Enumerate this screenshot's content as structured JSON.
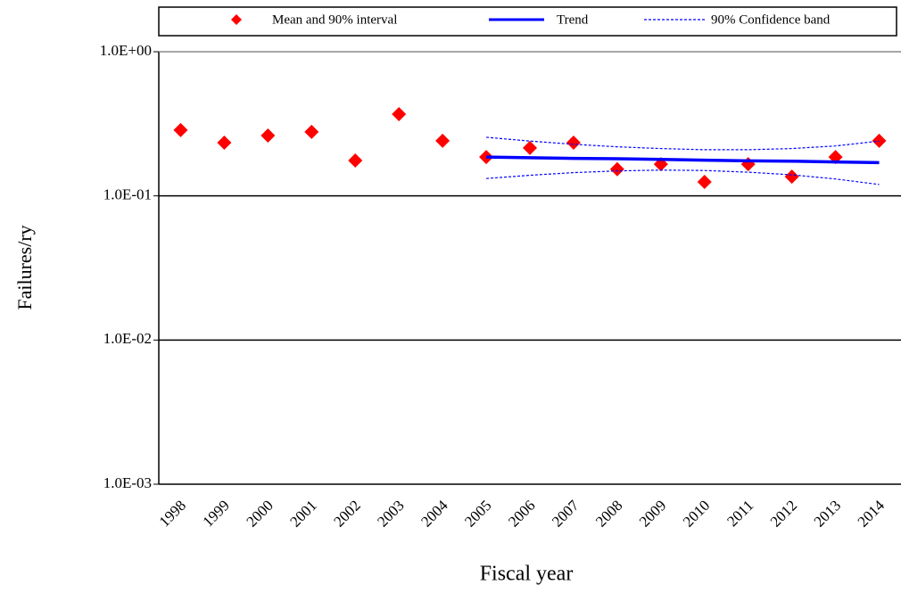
{
  "chart_data": {
    "type": "line",
    "x_label": "Fiscal year",
    "y_label": "Failures/ry",
    "categories": [
      "1998",
      "1999",
      "2000",
      "2001",
      "2002",
      "2003",
      "2004",
      "2005",
      "2006",
      "2007",
      "2008",
      "2009",
      "2010",
      "2011",
      "2012",
      "2013",
      "2014"
    ],
    "log_scale": true,
    "grid": true,
    "legend": "top",
    "ylim": [
      0.001,
      1
    ],
    "yticks": [
      {
        "value": 0.001,
        "label": "1.0E-03"
      },
      {
        "value": 0.01,
        "label": "1.0E-02"
      },
      {
        "value": 0.1,
        "label": "1.0E-01"
      },
      {
        "value": 1,
        "label": "1.0E+00"
      }
    ],
    "series": [
      {
        "name": "Mean and 90% interval",
        "color": "#ff0000",
        "mode": "markers",
        "values": [
          0.286,
          0.234,
          0.262,
          0.278,
          0.176,
          0.369,
          0.241,
          0.186,
          0.215,
          0.234,
          0.153,
          0.166,
          0.125,
          0.166,
          0.136,
          0.186,
          0.241
        ]
      },
      {
        "name": "Trend",
        "color": "#0000ff",
        "mode": "line",
        "values": [
          null,
          null,
          null,
          null,
          null,
          null,
          null,
          0.186,
          0.184,
          0.182,
          0.181,
          0.179,
          0.177,
          0.175,
          0.174,
          0.172,
          0.17
        ]
      },
      {
        "name": "90% Confidence band",
        "color": "#0000ff",
        "mode": "dashed",
        "upper": [
          null,
          null,
          null,
          null,
          null,
          null,
          null,
          0.255,
          0.24,
          0.228,
          0.219,
          0.213,
          0.209,
          0.209,
          0.213,
          0.222,
          0.24
        ],
        "lower": [
          null,
          null,
          null,
          null,
          null,
          null,
          null,
          0.132,
          0.139,
          0.145,
          0.149,
          0.151,
          0.15,
          0.146,
          0.14,
          0.131,
          0.12
        ]
      }
    ]
  }
}
